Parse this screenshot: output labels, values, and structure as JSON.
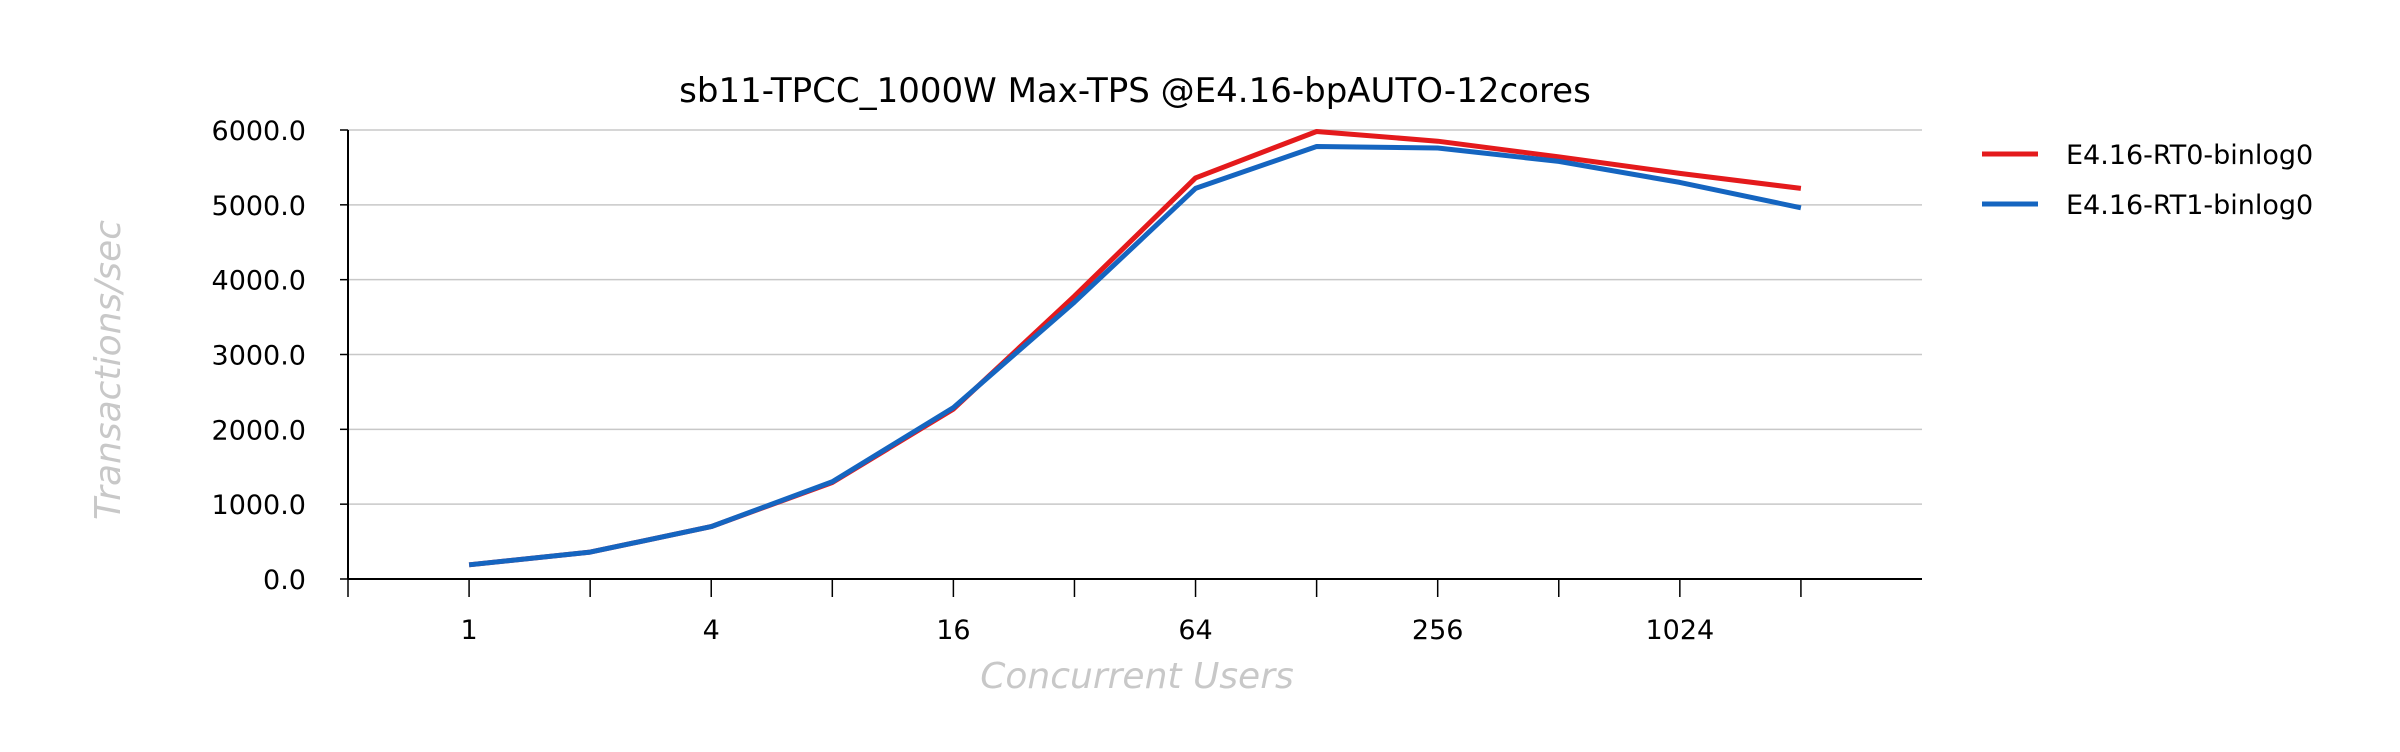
{
  "chart_data": {
    "type": "line",
    "title": "sb11-TPCC_1000W Max-TPS @E4.16-bpAUTO-12cores",
    "xlabel": "Concurrent Users",
    "ylabel": "Transactions/sec",
    "x_scale": "log2",
    "x": [
      1,
      2,
      4,
      8,
      16,
      32,
      64,
      128,
      256,
      512,
      1024,
      2048
    ],
    "x_tick_labels": [
      "1",
      "",
      "4",
      "",
      "16",
      "",
      "64",
      "",
      "256",
      "",
      "1024",
      ""
    ],
    "xlim": [
      0.5,
      4096
    ],
    "ylim": [
      0,
      6000
    ],
    "y_ticks": [
      0,
      1000,
      2000,
      3000,
      4000,
      5000,
      6000
    ],
    "y_tick_labels": [
      "0.0",
      "1000.0",
      "2000.0",
      "3000.0",
      "4000.0",
      "5000.0",
      "6000.0"
    ],
    "grid": "horizontal",
    "legend": "right",
    "series": [
      {
        "name": "E4.16-RT0-binlog0",
        "color": "#e41a1c",
        "values": [
          190,
          360,
          700,
          1290,
          2270,
          3780,
          5360,
          5980,
          5850,
          5640,
          5420,
          5220
        ]
      },
      {
        "name": "E4.16-RT1-binlog0",
        "color": "#1565c0",
        "values": [
          190,
          360,
          700,
          1300,
          2290,
          3700,
          5220,
          5780,
          5760,
          5580,
          5300,
          4960
        ]
      }
    ]
  }
}
